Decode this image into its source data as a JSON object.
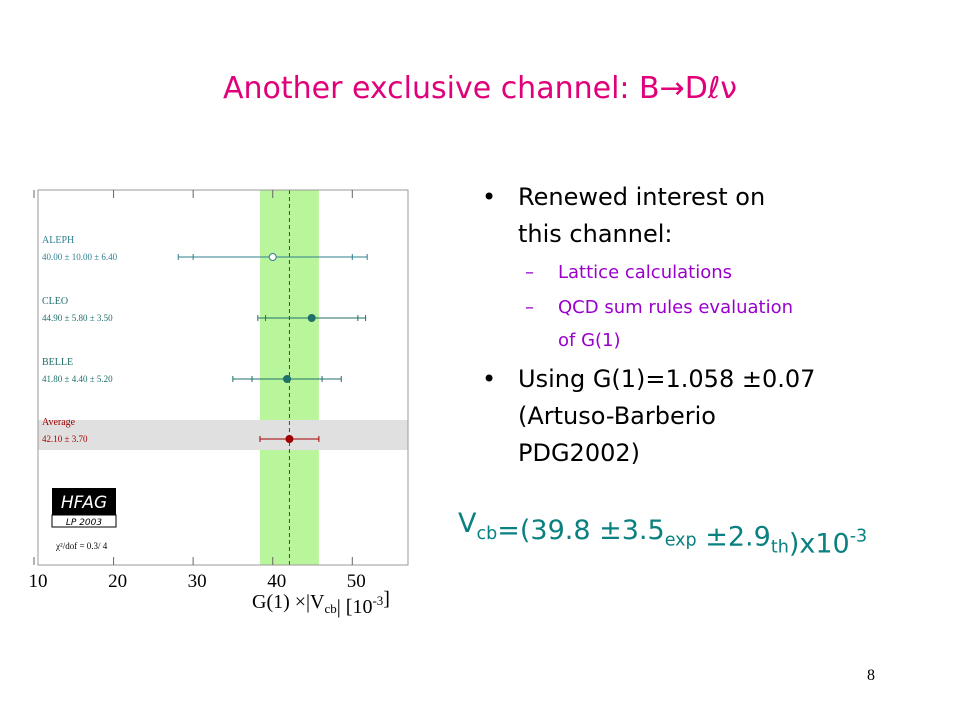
{
  "title": "Another exclusive channel: B→Dℓν",
  "bullets": [
    {
      "lines": [
        "Renewed interest on",
        "this channel:"
      ],
      "sub": [
        [
          "Lattice calculations"
        ],
        [
          "QCD sum rules evaluation",
          "of G(1)"
        ]
      ]
    },
    {
      "lines": [
        "Using G(1)=1.058 ±0.07",
        "(Artuso-Barberio",
        "PDG2002)"
      ],
      "sub": []
    }
  ],
  "result": [
    {
      "t": "V",
      "s": "base"
    },
    {
      "t": "cb",
      "s": "sub"
    },
    {
      "t": "=(39.8 ±3.5",
      "s": "base"
    },
    {
      "t": "exp",
      "s": "sub"
    },
    {
      "t": " ±2.9",
      "s": "base"
    },
    {
      "t": "th",
      "s": "sub"
    },
    {
      "t": ")x10",
      "s": "base"
    },
    {
      "t": "-3",
      "s": "sup"
    }
  ],
  "page_number": "8",
  "plot": {
    "type": "errorbar",
    "xlim": [
      10,
      57
    ],
    "xticks": [
      10,
      20,
      30,
      40,
      50
    ],
    "xlabel": [
      {
        "t": "G(1) ×|V",
        "s": "base"
      },
      {
        "t": "cb",
        "s": "sub"
      },
      {
        "t": "| [10",
        "s": "base"
      },
      {
        "t": "-3",
        "s": "sup"
      },
      {
        "t": "]",
        "s": "base"
      }
    ],
    "measurements": [
      {
        "name": "ALEPH",
        "label": "40.00 ± 10.00 ± 6.40",
        "value": 40.0,
        "stat": 10.0,
        "syst": 6.4,
        "color": "#2e7f8f",
        "open": true
      },
      {
        "name": "CLEO",
        "label": "44.90 ± 5.80 ± 3.50",
        "value": 44.9,
        "stat": 5.8,
        "syst": 3.5,
        "color": "#1f6f6a",
        "open": false
      },
      {
        "name": "BELLE",
        "label": "41.80 ± 4.40 ± 5.20",
        "value": 41.8,
        "stat": 4.4,
        "syst": 5.2,
        "color": "#1f6f6a",
        "open": false
      }
    ],
    "average": {
      "name": "Average",
      "label": "42.10 ± 3.70",
      "value": 42.1,
      "stat": 3.7,
      "color": "#a00000",
      "band_color": "#b9f59a"
    },
    "logo": "HFAG",
    "logo_sub": "LP 2003",
    "chi2": "χ²/dof = 0.3/ 4"
  }
}
